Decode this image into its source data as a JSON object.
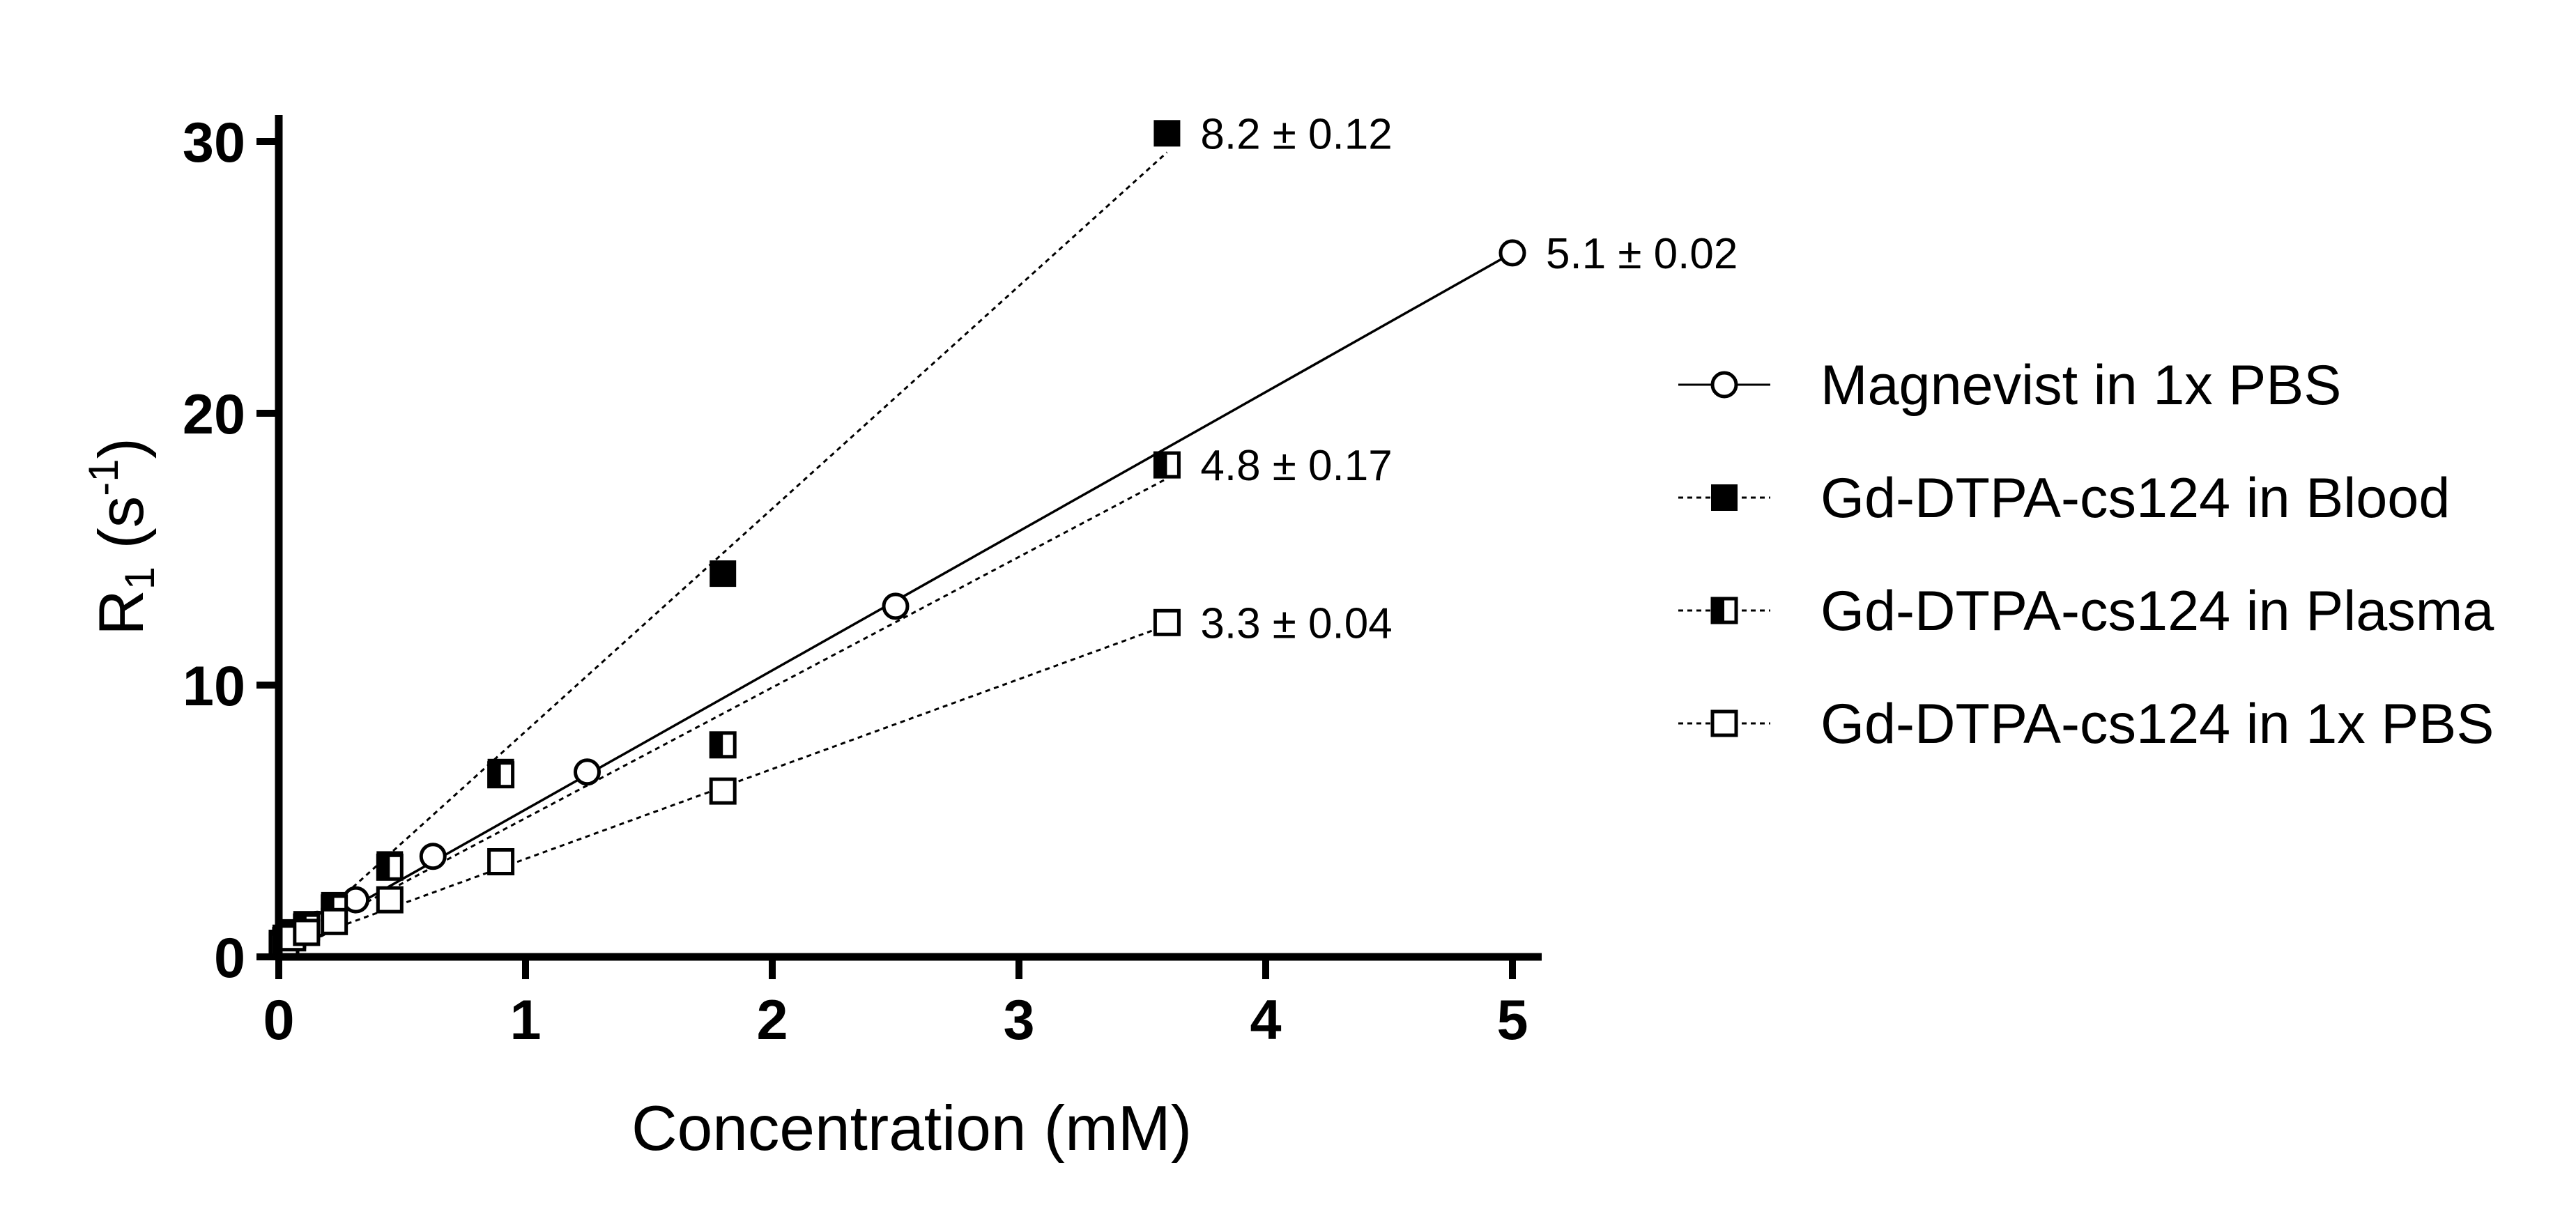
{
  "chart_data": {
    "type": "scatter",
    "xlabel": "Concentration (mM)",
    "ylabel_main": "R",
    "ylabel_sub": "1",
    "ylabel_open": " (s",
    "ylabel_sup": "-1",
    "ylabel_close": ")",
    "xlim": [
      0,
      5.1
    ],
    "ylim": [
      0,
      30
    ],
    "xticks": [
      0,
      1,
      2,
      3,
      4,
      5
    ],
    "yticks": [
      0,
      10,
      20,
      30
    ],
    "legend_position": "right",
    "series": [
      {
        "name": "Magnevist in 1x PBS",
        "marker": "circle-open",
        "line": "solid",
        "x": [
          0.0195,
          0.039,
          0.078,
          0.156,
          0.3125,
          0.625,
          1.25,
          2.5,
          5.0
        ],
        "y": [
          0.4,
          0.6,
          0.8,
          1.2,
          2.1,
          3.7,
          6.8,
          12.9,
          25.9
        ],
        "fit": {
          "x": [
            0,
            5.0
          ],
          "y": [
            0.3,
            25.9
          ]
        },
        "annotation": "5.1 ± 0.02"
      },
      {
        "name": "Gd-DTPA-cs124 in Blood",
        "marker": "square-filled",
        "line": "dotted",
        "x": [
          0.014,
          0.028,
          0.056,
          0.1125,
          0.225,
          0.45,
          0.9,
          1.8,
          3.6
        ],
        "y": [
          0.5,
          0.7,
          0.9,
          1.2,
          1.9,
          3.4,
          6.8,
          14.1,
          30.3
        ],
        "fit": {
          "x": [
            0,
            3.6
          ],
          "y": [
            0.1,
            29.6
          ]
        },
        "annotation": "8.2 ± 0.12"
      },
      {
        "name": "Gd-DTPA-cs124 in Plasma",
        "marker": "square-half",
        "line": "dotted",
        "x": [
          0.014,
          0.028,
          0.056,
          0.1125,
          0.225,
          0.45,
          0.9,
          1.8,
          3.6
        ],
        "y": [
          0.5,
          0.6,
          0.8,
          1.1,
          1.8,
          3.3,
          6.7,
          7.8,
          18.1
        ],
        "fit": {
          "x": [
            0,
            3.6
          ],
          "y": [
            0.3,
            17.6
          ]
        },
        "annotation": "4.8 ± 0.17"
      },
      {
        "name": "Gd-DTPA-cs124 in 1x PBS",
        "marker": "square-open",
        "line": "dotted",
        "x": [
          0.014,
          0.028,
          0.056,
          0.1125,
          0.225,
          0.45,
          0.9,
          1.8,
          3.6
        ],
        "y": [
          0.4,
          0.5,
          0.7,
          0.9,
          1.3,
          2.1,
          3.5,
          6.1,
          12.3
        ],
        "fit": {
          "x": [
            0,
            3.6
          ],
          "y": [
            0.3,
            12.2
          ]
        },
        "annotation": "3.3 ± 0.04"
      }
    ]
  }
}
